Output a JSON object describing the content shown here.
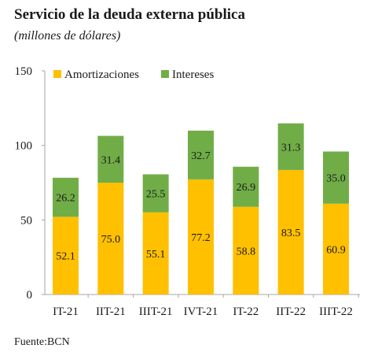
{
  "title": "Servicio de la deuda externa pública",
  "subtitle": "(millones de dólares)",
  "source": "Fuente:BCN",
  "colors": {
    "amortizaciones": "#FFC000",
    "intereses": "#70AD47",
    "axis": "#a6a6a6",
    "text": "#1a1a1a"
  },
  "chart_data": {
    "type": "bar",
    "stacked": true,
    "categories": [
      "IT-21",
      "IIT-21",
      "IIIT-21",
      "IVT-21",
      "IT-22",
      "IIT-22",
      "IIIT-22"
    ],
    "series": [
      {
        "name": "Amortizaciones",
        "values": [
          52.1,
          75.0,
          55.1,
          77.2,
          58.8,
          83.5,
          60.9
        ]
      },
      {
        "name": "Intereses",
        "values": [
          26.2,
          31.4,
          25.5,
          32.7,
          26.9,
          31.3,
          35.0
        ]
      }
    ],
    "data_labels": [
      [
        "52.1",
        "75.0",
        "55.1",
        "77.2",
        "58.8",
        "83.5",
        "60.9"
      ],
      [
        "26.2",
        "31.4",
        "25.5",
        "32.7",
        "26.9",
        "31.3",
        "35.0"
      ]
    ],
    "ylim": [
      0,
      150
    ],
    "yticks": [
      0,
      50,
      100,
      150
    ],
    "grid": false,
    "legend_position": "top"
  }
}
